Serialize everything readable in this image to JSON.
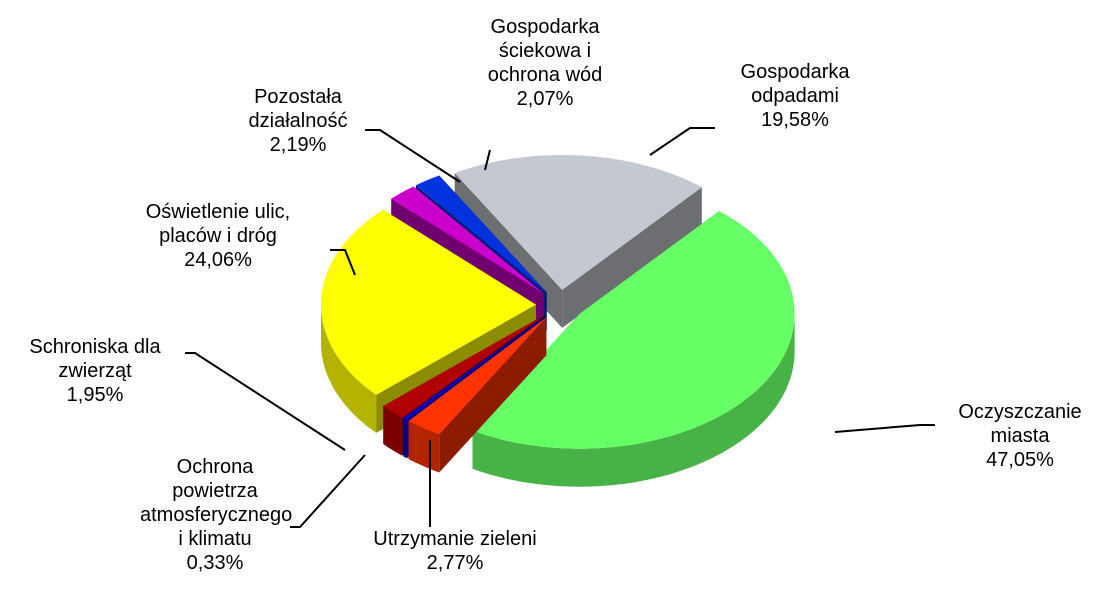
{
  "chart_data": {
    "type": "pie",
    "categories": [
      "Gospodarka odpadami",
      "Oczyszczanie miasta",
      "Utrzymanie zieleni",
      "Ochrona powietrza atmosferycznego i klimatu",
      "Schroniska dla zwierząt",
      "Oświetlenie ulic, placów i dróg",
      "Pozostała działalność",
      "Gospodarka ściekowa i ochrona wód"
    ],
    "values": [
      19.58,
      47.05,
      2.77,
      0.33,
      1.95,
      24.06,
      2.19,
      2.07
    ],
    "value_labels": [
      "19,58%",
      "47,05%",
      "2,77%",
      "0,33%",
      "1,95%",
      "24,06%",
      "2,19%",
      "2,07%"
    ],
    "colors": [
      "#c4c8d0",
      "#66ff66",
      "#ff3300",
      "#0000cc",
      "#b00000",
      "#ffff00",
      "#cc00cc",
      "#0033dd"
    ]
  }
}
